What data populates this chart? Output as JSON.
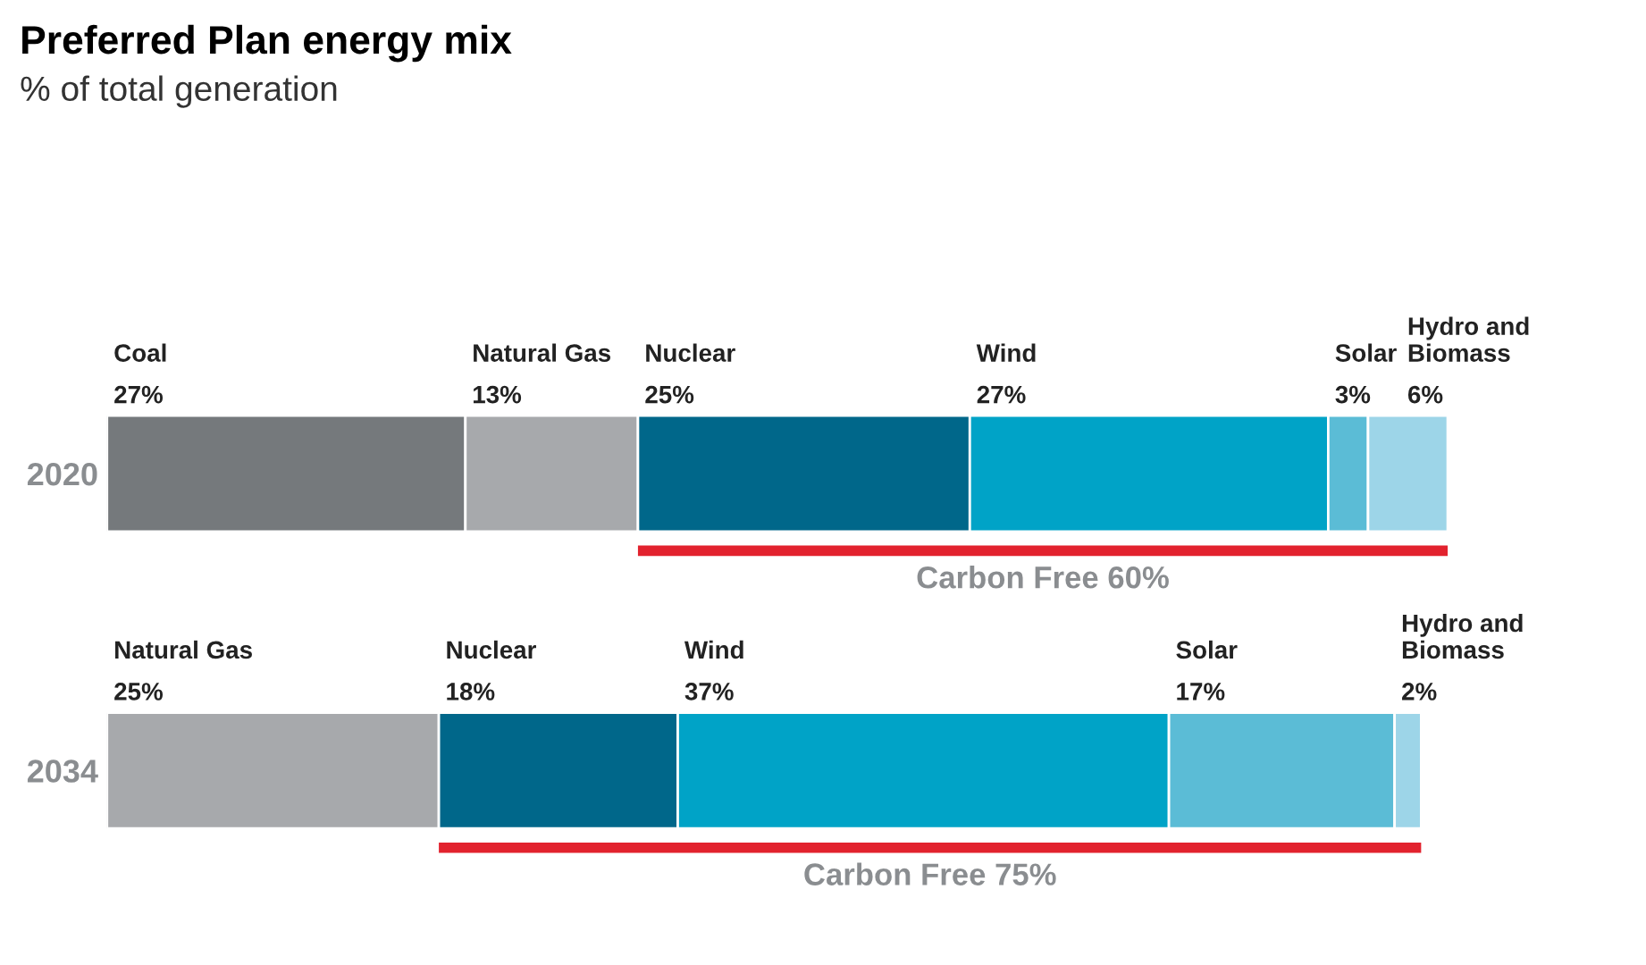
{
  "chart_data": {
    "type": "bar",
    "orientation": "horizontal",
    "stacked": true,
    "title": "Preferred Plan energy mix",
    "subtitle": "% of total generation",
    "categories": [
      "2020",
      "2034"
    ],
    "series": [
      {
        "name": "Coal",
        "color": "#75797c",
        "values": [
          27,
          null
        ],
        "value_labels": [
          "27%",
          null
        ]
      },
      {
        "name": "Natural Gas",
        "color": "#a7a9ac",
        "values": [
          13,
          25
        ],
        "value_labels": [
          "13%",
          "25%"
        ]
      },
      {
        "name": "Nuclear",
        "color": "#00678a",
        "values": [
          25,
          18
        ],
        "value_labels": [
          "25%",
          "18%"
        ]
      },
      {
        "name": "Wind",
        "color": "#00a3c7",
        "values": [
          27,
          37
        ],
        "value_labels": [
          "27%",
          "37%"
        ]
      },
      {
        "name": "Solar",
        "color": "#5bbcd6",
        "values": [
          3,
          17
        ],
        "value_labels": [
          "3%",
          "17%"
        ]
      },
      {
        "name": "Hydro and\nBiomass",
        "color": "#9dd5e8",
        "values": [
          6,
          2
        ],
        "value_labels": [
          "6%",
          "2%"
        ]
      }
    ],
    "annotations": [
      "Carbon Free 60%",
      "Carbon Free 75%"
    ],
    "tick_labels": "y",
    "legend": false,
    "grid": false
  }
}
